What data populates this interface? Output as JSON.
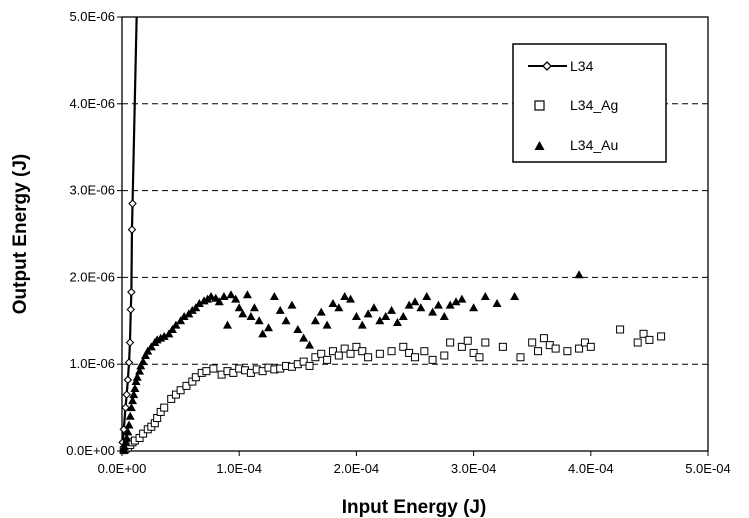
{
  "chart_data": {
    "type": "scatter",
    "title": "",
    "xlabel": "Input Energy (J)",
    "ylabel": "Output Energy (J)",
    "xlim": [
      0,
      0.0005
    ],
    "ylim": [
      0,
      5e-06
    ],
    "x_ticks": [
      "0.0E+00",
      "1.0E-04",
      "2.0E-04",
      "3.0E-04",
      "4.0E-04",
      "5.0E-04"
    ],
    "y_ticks": [
      "0.0E+00",
      "1.0E-06",
      "2.0E-06",
      "3.0E-06",
      "4.0E-06",
      "5.0E-06"
    ],
    "grid": "horizontal dashed at 1.0E-06, 2.0E-06, 3.0E-06, 4.0E-06",
    "legend_position": "top-right",
    "series": [
      {
        "name": "L34",
        "marker": "diamond-open-line",
        "points": [
          [
            5e-07,
            1e-07
          ],
          [
            1.5e-06,
            2.5e-07
          ],
          [
            3e-06,
            5e-07
          ],
          [
            4e-06,
            6.5e-07
          ],
          [
            5e-06,
            8.2e-07
          ],
          [
            6e-06,
            1.02e-06
          ],
          [
            6.8e-06,
            1.25e-06
          ],
          [
            7.5e-06,
            1.63e-06
          ],
          [
            8e-06,
            1.83e-06
          ],
          [
            8.5e-06,
            2.55e-06
          ],
          [
            9e-06,
            2.85e-06
          ],
          [
            1.25e-05,
            5e-06
          ]
        ]
      },
      {
        "name": "L34_Ag",
        "marker": "square-open",
        "points": [
          [
            1.5e-06,
            1e-08
          ],
          [
            3e-06,
            2e-08
          ],
          [
            5e-06,
            4e-08
          ],
          [
            7e-06,
            7e-08
          ],
          [
            9e-06,
            1e-07
          ],
          [
            1.1e-05,
            1.2e-07
          ],
          [
            1.5e-05,
            1.5e-07
          ],
          [
            1.8e-05,
            2e-07
          ],
          [
            2.2e-05,
            2.5e-07
          ],
          [
            2.5e-05,
            2.8e-07
          ],
          [
            2.8e-05,
            3.2e-07
          ],
          [
            3e-05,
            3.8e-07
          ],
          [
            3.3e-05,
            4.5e-07
          ],
          [
            3.6e-05,
            5e-07
          ],
          [
            4.2e-05,
            6e-07
          ],
          [
            4.6e-05,
            6.5e-07
          ],
          [
            5e-05,
            7e-07
          ],
          [
            5.5e-05,
            7.5e-07
          ],
          [
            6e-05,
            8e-07
          ],
          [
            6.3e-05,
            8.5e-07
          ],
          [
            6.8e-05,
            9e-07
          ],
          [
            7.2e-05,
            9.2e-07
          ],
          [
            7.8e-05,
            9.5e-07
          ],
          [
            8.5e-05,
            8.8e-07
          ],
          [
            9e-05,
            9.2e-07
          ],
          [
            9.5e-05,
            9e-07
          ],
          [
            0.0001,
            9.5e-07
          ],
          [
            0.000105,
            9.3e-07
          ],
          [
            0.00011,
            9e-07
          ],
          [
            0.000115,
            9.4e-07
          ],
          [
            0.00012,
            9.2e-07
          ],
          [
            0.000125,
            9.6e-07
          ],
          [
            0.00013,
            9.4e-07
          ],
          [
            0.000135,
            9.5e-07
          ],
          [
            0.00014,
            9.8e-07
          ],
          [
            0.000145,
            9.7e-07
          ],
          [
            0.00015,
            1e-06
          ],
          [
            0.000155,
            1.03e-06
          ],
          [
            0.00016,
            9.8e-07
          ],
          [
            0.000165,
            1.08e-06
          ],
          [
            0.00017,
            1.12e-06
          ],
          [
            0.000175,
            1.05e-06
          ],
          [
            0.00018,
            1.15e-06
          ],
          [
            0.000185,
            1.1e-06
          ],
          [
            0.00019,
            1.18e-06
          ],
          [
            0.000195,
            1.12e-06
          ],
          [
            0.0002,
            1.2e-06
          ],
          [
            0.000205,
            1.15e-06
          ],
          [
            0.00021,
            1.08e-06
          ],
          [
            0.00022,
            1.12e-06
          ],
          [
            0.00023,
            1.15e-06
          ],
          [
            0.00024,
            1.2e-06
          ],
          [
            0.000245,
            1.13e-06
          ],
          [
            0.00025,
            1.08e-06
          ],
          [
            0.000258,
            1.15e-06
          ],
          [
            0.000265,
            1.05e-06
          ],
          [
            0.000275,
            1.1e-06
          ],
          [
            0.00028,
            1.25e-06
          ],
          [
            0.00029,
            1.2e-06
          ],
          [
            0.000295,
            1.27e-06
          ],
          [
            0.0003,
            1.13e-06
          ],
          [
            0.000305,
            1.08e-06
          ],
          [
            0.00031,
            1.25e-06
          ],
          [
            0.000325,
            1.2e-06
          ],
          [
            0.00034,
            1.08e-06
          ],
          [
            0.00035,
            1.25e-06
          ],
          [
            0.000355,
            1.15e-06
          ],
          [
            0.00036,
            1.3e-06
          ],
          [
            0.000365,
            1.22e-06
          ],
          [
            0.00037,
            1.18e-06
          ],
          [
            0.00038,
            1.15e-06
          ],
          [
            0.00039,
            1.18e-06
          ],
          [
            0.000395,
            1.25e-06
          ],
          [
            0.0004,
            1.2e-06
          ],
          [
            0.000425,
            1.4e-06
          ],
          [
            0.00044,
            1.25e-06
          ],
          [
            0.000445,
            1.35e-06
          ],
          [
            0.00045,
            1.28e-06
          ],
          [
            0.00046,
            1.32e-06
          ]
        ]
      },
      {
        "name": "L34_Au",
        "marker": "triangle-filled",
        "points": [
          [
            1.5e-06,
            2e-08
          ],
          [
            2e-06,
            5e-08
          ],
          [
            3e-06,
            1e-07
          ],
          [
            4e-06,
            1.5e-07
          ],
          [
            5e-06,
            2.2e-07
          ],
          [
            6e-06,
            3e-07
          ],
          [
            7e-06,
            4e-07
          ],
          [
            8e-06,
            5e-07
          ],
          [
            9e-06,
            5.8e-07
          ],
          [
            1e-05,
            6.5e-07
          ],
          [
            1.1e-05,
            7.2e-07
          ],
          [
            1.2e-05,
            8e-07
          ],
          [
            1.3e-05,
            8.5e-07
          ],
          [
            1.5e-05,
            9.2e-07
          ],
          [
            1.6e-05,
            9.8e-07
          ],
          [
            1.8e-05,
            1.03e-06
          ],
          [
            2e-05,
            1.1e-06
          ],
          [
            2.2e-05,
            1.15e-06
          ],
          [
            2.5e-05,
            1.2e-06
          ],
          [
            2.8e-05,
            1.25e-06
          ],
          [
            3e-05,
            1.28e-06
          ],
          [
            3.3e-05,
            1.3e-06
          ],
          [
            3.6e-05,
            1.32e-06
          ],
          [
            4e-05,
            1.35e-06
          ],
          [
            4.3e-05,
            1.4e-06
          ],
          [
            4.6e-05,
            1.45e-06
          ],
          [
            5e-05,
            1.5e-06
          ],
          [
            5.3e-05,
            1.55e-06
          ],
          [
            5.7e-05,
            1.58e-06
          ],
          [
            6e-05,
            1.62e-06
          ],
          [
            6.3e-05,
            1.65e-06
          ],
          [
            6.6e-05,
            1.7e-06
          ],
          [
            7e-05,
            1.73e-06
          ],
          [
            7.3e-05,
            1.75e-06
          ],
          [
            7.6e-05,
            1.78e-06
          ],
          [
            8e-05,
            1.76e-06
          ],
          [
            8.3e-05,
            1.72e-06
          ],
          [
            8.7e-05,
            1.78e-06
          ],
          [
            9e-05,
            1.45e-06
          ],
          [
            9.3e-05,
            1.8e-06
          ],
          [
            9.7e-05,
            1.75e-06
          ],
          [
            0.0001,
            1.65e-06
          ],
          [
            0.000103,
            1.58e-06
          ],
          [
            0.000107,
            1.8e-06
          ],
          [
            0.00011,
            1.55e-06
          ],
          [
            0.000113,
            1.65e-06
          ],
          [
            0.000117,
            1.5e-06
          ],
          [
            0.00012,
            1.35e-06
          ],
          [
            0.000125,
            1.42e-06
          ],
          [
            0.00013,
            1.78e-06
          ],
          [
            0.000135,
            1.62e-06
          ],
          [
            0.00014,
            1.5e-06
          ],
          [
            0.000145,
            1.68e-06
          ],
          [
            0.00015,
            1.4e-06
          ],
          [
            0.000155,
            1.3e-06
          ],
          [
            0.00016,
            1.22e-06
          ],
          [
            0.000165,
            1.5e-06
          ],
          [
            0.00017,
            1.6e-06
          ],
          [
            0.000175,
            1.45e-06
          ],
          [
            0.00018,
            1.7e-06
          ],
          [
            0.000185,
            1.65e-06
          ],
          [
            0.00019,
            1.78e-06
          ],
          [
            0.000195,
            1.75e-06
          ],
          [
            0.0002,
            1.55e-06
          ],
          [
            0.000205,
            1.45e-06
          ],
          [
            0.00021,
            1.58e-06
          ],
          [
            0.000215,
            1.65e-06
          ],
          [
            0.00022,
            1.5e-06
          ],
          [
            0.000225,
            1.55e-06
          ],
          [
            0.00023,
            1.62e-06
          ],
          [
            0.000235,
            1.48e-06
          ],
          [
            0.00024,
            1.55e-06
          ],
          [
            0.000245,
            1.68e-06
          ],
          [
            0.00025,
            1.72e-06
          ],
          [
            0.000255,
            1.65e-06
          ],
          [
            0.00026,
            1.78e-06
          ],
          [
            0.000265,
            1.6e-06
          ],
          [
            0.00027,
            1.68e-06
          ],
          [
            0.000275,
            1.55e-06
          ],
          [
            0.00028,
            1.68e-06
          ],
          [
            0.000285,
            1.72e-06
          ],
          [
            0.00029,
            1.75e-06
          ],
          [
            0.0003,
            1.65e-06
          ],
          [
            0.00031,
            1.78e-06
          ],
          [
            0.00032,
            1.7e-06
          ],
          [
            0.000335,
            1.78e-06
          ],
          [
            0.00039,
            2.03e-06
          ]
        ]
      }
    ]
  }
}
